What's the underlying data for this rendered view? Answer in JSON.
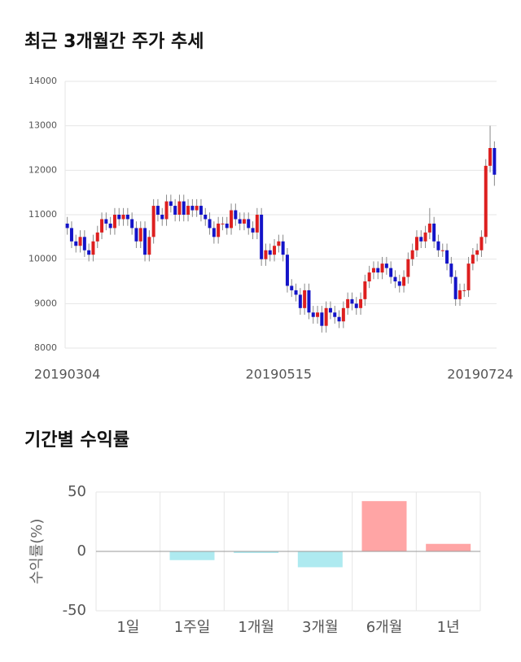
{
  "chart_data": [
    {
      "type": "candlestick",
      "title": "최근 3개월간 주가 추세",
      "categories": [
        "20190304",
        null,
        null,
        null,
        null,
        null,
        null,
        null,
        null,
        null,
        null,
        null,
        null,
        null,
        null,
        null,
        null,
        null,
        null,
        null,
        null,
        null,
        null,
        null,
        null,
        null,
        null,
        null,
        null,
        null,
        null,
        null,
        null,
        null,
        null,
        null,
        null,
        null,
        null,
        null,
        null,
        null,
        null,
        null,
        null,
        null,
        null,
        null,
        null,
        "20190515",
        null,
        null,
        null,
        null,
        null,
        null,
        null,
        null,
        null,
        null,
        null,
        null,
        null,
        null,
        null,
        null,
        null,
        null,
        null,
        null,
        null,
        null,
        null,
        null,
        null,
        null,
        null,
        null,
        null,
        null,
        null,
        null,
        null,
        null,
        null,
        null,
        null,
        null,
        null,
        null,
        null,
        null,
        null,
        null,
        null,
        null,
        null,
        null,
        null,
        "20190724"
      ],
      "open": [
        10800,
        10700,
        10400,
        10300,
        10500,
        10200,
        10100,
        10400,
        10600,
        10900,
        10800,
        10700,
        11000,
        10900,
        11000,
        10900,
        10700,
        10400,
        10700,
        10100,
        10500,
        11200,
        11000,
        10900,
        11300,
        11200,
        11000,
        11300,
        11000,
        11200,
        11100,
        11200,
        11000,
        10900,
        10700,
        10500,
        10800,
        10800,
        10700,
        11100,
        10900,
        10800,
        10900,
        10700,
        10600,
        11000,
        10000,
        10200,
        10100,
        10300,
        10400,
        10100,
        9400,
        9300,
        9200,
        8900,
        9300,
        8800,
        8700,
        8800,
        8500,
        8900,
        8800,
        8700,
        8600,
        8900,
        9100,
        9000,
        8900,
        9100,
        9500,
        9700,
        9800,
        9700,
        9900,
        9800,
        9600,
        9500,
        9400,
        9600,
        10000,
        10200,
        10500,
        10400,
        10600,
        10800,
        10400,
        10200,
        10200,
        9900,
        9600,
        9100,
        9300,
        9300,
        9900,
        10100,
        10200,
        10500,
        12100,
        12500
      ],
      "high": [
        10950,
        10850,
        10550,
        10650,
        10650,
        10350,
        10550,
        10750,
        11050,
        11050,
        10950,
        11150,
        11150,
        11150,
        11150,
        11050,
        10850,
        10850,
        10850,
        10650,
        11350,
        11350,
        11150,
        11450,
        11450,
        11350,
        11450,
        11450,
        11350,
        11350,
        11350,
        11350,
        11150,
        11050,
        10850,
        10950,
        10950,
        10950,
        11250,
        11250,
        11050,
        11050,
        11050,
        10850,
        11150,
        11150,
        10350,
        10350,
        10450,
        10550,
        10550,
        10250,
        9550,
        9450,
        9350,
        9450,
        9450,
        8950,
        8950,
        8950,
        9050,
        9050,
        8950,
        8850,
        9050,
        9250,
        9250,
        9150,
        9250,
        9650,
        9850,
        9950,
        9950,
        10050,
        10050,
        9950,
        9750,
        9650,
        9750,
        10150,
        10350,
        10650,
        10650,
        10750,
        11150,
        10950,
        10550,
        10350,
        10350,
        10050,
        9750,
        9450,
        9450,
        10050,
        10250,
        10350,
        10650,
        12250,
        13000,
        12650
      ],
      "low": [
        10550,
        10250,
        10150,
        10150,
        10050,
        9950,
        9950,
        10250,
        10450,
        10650,
        10550,
        10550,
        10750,
        10750,
        10750,
        10550,
        10250,
        10250,
        9950,
        9950,
        10350,
        10850,
        10750,
        10750,
        11050,
        10850,
        10850,
        10850,
        10850,
        10950,
        10950,
        10850,
        10750,
        10550,
        10350,
        10350,
        10650,
        10550,
        10550,
        10750,
        10650,
        10650,
        10550,
        10450,
        10450,
        9850,
        9850,
        9950,
        9950,
        10150,
        9950,
        9250,
        9150,
        9050,
        8750,
        8750,
        8650,
        8550,
        8550,
        8350,
        8350,
        8650,
        8550,
        8450,
        8450,
        8750,
        8850,
        8750,
        8750,
        8950,
        9350,
        9550,
        9550,
        9550,
        9650,
        9450,
        9350,
        9250,
        9250,
        9450,
        9850,
        10050,
        10250,
        10250,
        10450,
        10250,
        10050,
        10050,
        9750,
        9450,
        8950,
        8950,
        9150,
        9150,
        9750,
        9950,
        10050,
        10350,
        11950,
        11650
      ],
      "close": [
        10700,
        10400,
        10300,
        10500,
        10200,
        10100,
        10400,
        10600,
        10900,
        10800,
        10700,
        11000,
        10900,
        11000,
        10900,
        10700,
        10400,
        10700,
        10100,
        10500,
        11200,
        11000,
        10900,
        11300,
        11200,
        11000,
        11300,
        11000,
        11200,
        11100,
        11200,
        11000,
        10900,
        10700,
        10500,
        10800,
        10800,
        10700,
        11100,
        10900,
        10800,
        10900,
        10700,
        10600,
        11000,
        10000,
        10200,
        10100,
        10300,
        10400,
        10100,
        9400,
        9300,
        9200,
        8900,
        9300,
        8800,
        8700,
        8800,
        8500,
        8900,
        8800,
        8700,
        8600,
        8900,
        9100,
        9000,
        8900,
        9100,
        9500,
        9700,
        9800,
        9700,
        9900,
        9800,
        9600,
        9500,
        9400,
        9600,
        10000,
        10200,
        10500,
        10400,
        10600,
        10800,
        10400,
        10200,
        10200,
        9900,
        9600,
        9100,
        9300,
        9300,
        9900,
        10100,
        10200,
        10500,
        12100,
        12500,
        11900
      ],
      "up_color": "#dd1f1f",
      "down_color": "#1414c8",
      "ylim": [
        8000,
        14000
      ],
      "yticks": [
        8000,
        9000,
        10000,
        11000,
        12000,
        13000,
        14000
      ],
      "grid": true
    },
    {
      "type": "bar",
      "title": "기간별 수익률",
      "y_label": "수익률(%)",
      "categories": [
        "1일",
        "1주일",
        "1개월",
        "3개월",
        "6개월",
        "1년"
      ],
      "values": [
        0,
        -7,
        -1,
        -13,
        42,
        6
      ],
      "colors": [
        "#aeeaf0",
        "#aeeaf0",
        "#aeeaf0",
        "#aeeaf0",
        "#ffa5a5",
        "#ffa5a5"
      ],
      "ylim": [
        -50,
        50
      ],
      "yticks": [
        -50,
        0,
        50
      ],
      "grid": true
    }
  ]
}
